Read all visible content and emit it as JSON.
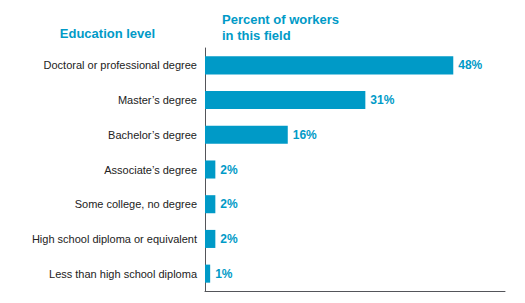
{
  "chart_data": {
    "type": "bar",
    "orientation": "horizontal",
    "annotations": [
      "Education level",
      "Percent of workers\nin this field"
    ],
    "categories": [
      "Less than high school diploma",
      "High school diploma or equivalent",
      "Some college, no degree",
      "Associate’s degree",
      "Bachelor’s degree",
      "Master’s degree",
      "Doctoral or professional degree"
    ],
    "values": [
      1,
      2,
      2,
      2,
      16,
      31,
      48
    ],
    "value_labels": [
      "1%",
      "2%",
      "2%",
      "2%",
      "16%",
      "31%",
      "48%"
    ],
    "data_labels": true,
    "color": "#009ac7",
    "xlim": [
      0,
      58
    ],
    "grid": false,
    "tick_labels": "y"
  }
}
